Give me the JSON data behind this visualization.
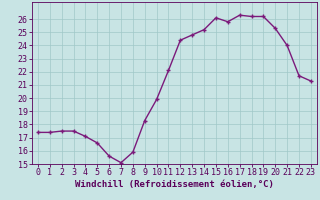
{
  "x": [
    0,
    1,
    2,
    3,
    4,
    5,
    6,
    7,
    8,
    9,
    10,
    11,
    12,
    13,
    14,
    15,
    16,
    17,
    18,
    19,
    20,
    21,
    22,
    23
  ],
  "y": [
    17.4,
    17.4,
    17.5,
    17.5,
    17.1,
    16.6,
    15.6,
    15.1,
    15.9,
    18.3,
    19.9,
    22.1,
    24.4,
    24.8,
    25.2,
    26.1,
    25.8,
    26.3,
    26.2,
    26.2,
    25.3,
    24.0,
    21.7,
    21.3
  ],
  "line_color": "#7b1a7b",
  "marker": "+",
  "marker_size": 3.5,
  "marker_linewidth": 1.0,
  "bg_color": "#c8e4e4",
  "grid_color": "#a0c8c8",
  "xlabel": "Windchill (Refroidissement éolien,°C)",
  "ylim": [
    15,
    27
  ],
  "xlim": [
    -0.5,
    23.5
  ],
  "yticks": [
    15,
    16,
    17,
    18,
    19,
    20,
    21,
    22,
    23,
    24,
    25,
    26
  ],
  "xticks": [
    0,
    1,
    2,
    3,
    4,
    5,
    6,
    7,
    8,
    9,
    10,
    11,
    12,
    13,
    14,
    15,
    16,
    17,
    18,
    19,
    20,
    21,
    22,
    23
  ],
  "axis_color": "#5a005a",
  "label_fontsize": 6.5,
  "tick_fontsize": 6.0,
  "linewidth": 1.0
}
